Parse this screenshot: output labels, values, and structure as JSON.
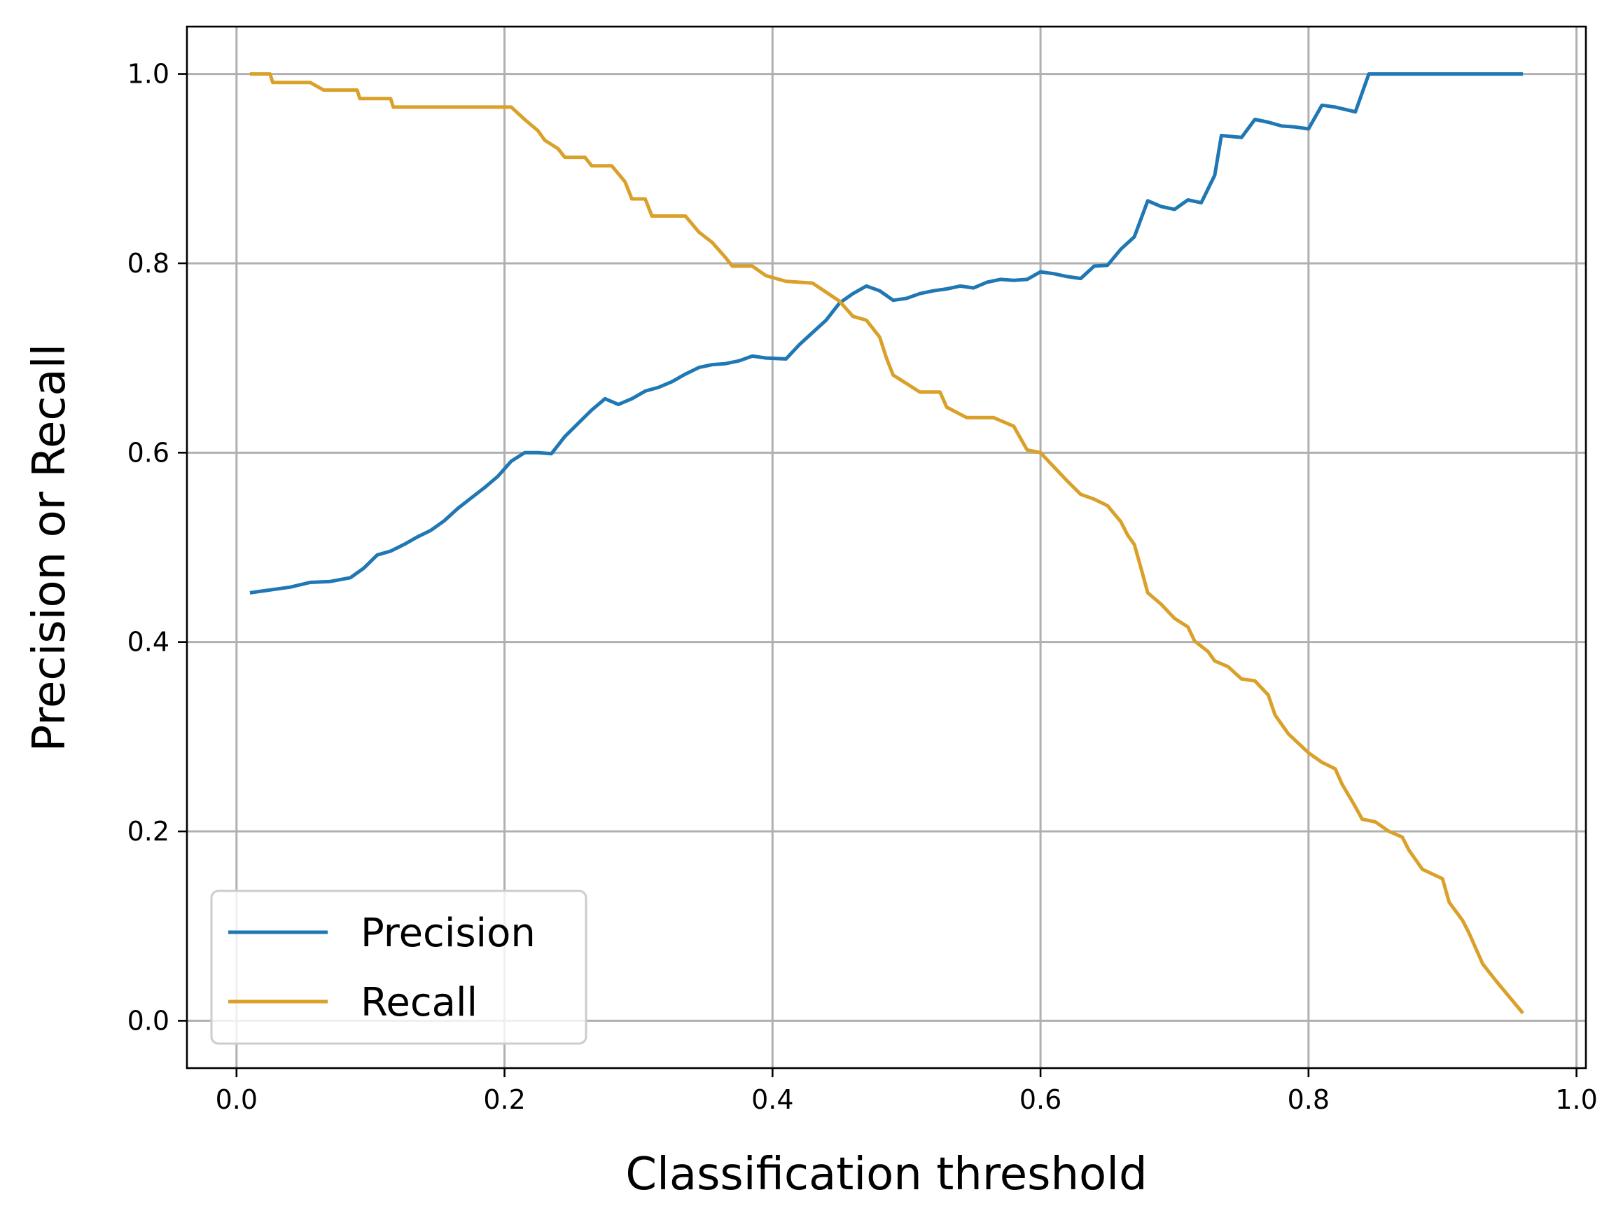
{
  "chart_data": {
    "type": "line",
    "title": "",
    "xlabel": "Classification threshold",
    "ylabel": "Precision or Recall",
    "xlim": [
      -0.037,
      1.007
    ],
    "ylim": [
      -0.05,
      1.05
    ],
    "xticks": [
      0.0,
      0.2,
      0.4,
      0.6,
      0.8,
      1.0
    ],
    "xtick_labels": [
      "0.0",
      "0.2",
      "0.4",
      "0.6",
      "0.8",
      "1.0"
    ],
    "yticks": [
      0.0,
      0.2,
      0.4,
      0.6,
      0.8,
      1.0
    ],
    "ytick_labels": [
      "0.0",
      "0.2",
      "0.4",
      "0.6",
      "0.8",
      "1.0"
    ],
    "grid": true,
    "legend_position": "lower-left",
    "series": [
      {
        "name": "Precision",
        "color": "#1f77b4",
        "points": [
          [
            0.01,
            0.452
          ],
          [
            0.025,
            0.455
          ],
          [
            0.04,
            0.458
          ],
          [
            0.055,
            0.463
          ],
          [
            0.07,
            0.464
          ],
          [
            0.085,
            0.468
          ],
          [
            0.095,
            0.478
          ],
          [
            0.105,
            0.492
          ],
          [
            0.115,
            0.496
          ],
          [
            0.125,
            0.503
          ],
          [
            0.135,
            0.511
          ],
          [
            0.145,
            0.518
          ],
          [
            0.155,
            0.528
          ],
          [
            0.165,
            0.541
          ],
          [
            0.175,
            0.552
          ],
          [
            0.185,
            0.563
          ],
          [
            0.195,
            0.575
          ],
          [
            0.205,
            0.591
          ],
          [
            0.215,
            0.6
          ],
          [
            0.225,
            0.6
          ],
          [
            0.235,
            0.599
          ],
          [
            0.245,
            0.617
          ],
          [
            0.255,
            0.631
          ],
          [
            0.265,
            0.645
          ],
          [
            0.275,
            0.657
          ],
          [
            0.285,
            0.651
          ],
          [
            0.295,
            0.657
          ],
          [
            0.305,
            0.665
          ],
          [
            0.315,
            0.669
          ],
          [
            0.325,
            0.675
          ],
          [
            0.335,
            0.683
          ],
          [
            0.345,
            0.69
          ],
          [
            0.355,
            0.693
          ],
          [
            0.365,
            0.694
          ],
          [
            0.375,
            0.697
          ],
          [
            0.385,
            0.702
          ],
          [
            0.395,
            0.7
          ],
          [
            0.41,
            0.699
          ],
          [
            0.42,
            0.714
          ],
          [
            0.43,
            0.727
          ],
          [
            0.44,
            0.74
          ],
          [
            0.45,
            0.758
          ],
          [
            0.46,
            0.768
          ],
          [
            0.47,
            0.776
          ],
          [
            0.48,
            0.771
          ],
          [
            0.49,
            0.761
          ],
          [
            0.5,
            0.763
          ],
          [
            0.51,
            0.768
          ],
          [
            0.52,
            0.771
          ],
          [
            0.53,
            0.773
          ],
          [
            0.54,
            0.776
          ],
          [
            0.55,
            0.774
          ],
          [
            0.56,
            0.78
          ],
          [
            0.57,
            0.783
          ],
          [
            0.58,
            0.782
          ],
          [
            0.59,
            0.783
          ],
          [
            0.6,
            0.791
          ],
          [
            0.61,
            0.789
          ],
          [
            0.62,
            0.786
          ],
          [
            0.63,
            0.784
          ],
          [
            0.64,
            0.797
          ],
          [
            0.65,
            0.798
          ],
          [
            0.66,
            0.815
          ],
          [
            0.67,
            0.828
          ],
          [
            0.68,
            0.866
          ],
          [
            0.69,
            0.86
          ],
          [
            0.7,
            0.857
          ],
          [
            0.71,
            0.867
          ],
          [
            0.72,
            0.864
          ],
          [
            0.73,
            0.893
          ],
          [
            0.735,
            0.935
          ],
          [
            0.75,
            0.933
          ],
          [
            0.76,
            0.952
          ],
          [
            0.77,
            0.949
          ],
          [
            0.78,
            0.945
          ],
          [
            0.79,
            0.944
          ],
          [
            0.8,
            0.942
          ],
          [
            0.81,
            0.967
          ],
          [
            0.82,
            0.965
          ],
          [
            0.835,
            0.96
          ],
          [
            0.845,
            1.0
          ],
          [
            0.96,
            1.0
          ]
        ]
      },
      {
        "name": "Recall",
        "color": "#daa12a",
        "points": [
          [
            0.01,
            1.0
          ],
          [
            0.025,
            1.0
          ],
          [
            0.027,
            0.991
          ],
          [
            0.055,
            0.991
          ],
          [
            0.065,
            0.983
          ],
          [
            0.09,
            0.983
          ],
          [
            0.092,
            0.974
          ],
          [
            0.115,
            0.974
          ],
          [
            0.117,
            0.965
          ],
          [
            0.205,
            0.965
          ],
          [
            0.215,
            0.952
          ],
          [
            0.225,
            0.94
          ],
          [
            0.23,
            0.93
          ],
          [
            0.24,
            0.921
          ],
          [
            0.245,
            0.912
          ],
          [
            0.26,
            0.912
          ],
          [
            0.265,
            0.903
          ],
          [
            0.28,
            0.903
          ],
          [
            0.29,
            0.886
          ],
          [
            0.295,
            0.868
          ],
          [
            0.305,
            0.868
          ],
          [
            0.31,
            0.85
          ],
          [
            0.335,
            0.85
          ],
          [
            0.345,
            0.833
          ],
          [
            0.355,
            0.822
          ],
          [
            0.365,
            0.806
          ],
          [
            0.37,
            0.797
          ],
          [
            0.385,
            0.797
          ],
          [
            0.395,
            0.787
          ],
          [
            0.41,
            0.781
          ],
          [
            0.43,
            0.779
          ],
          [
            0.45,
            0.76
          ],
          [
            0.46,
            0.744
          ],
          [
            0.47,
            0.74
          ],
          [
            0.475,
            0.731
          ],
          [
            0.48,
            0.722
          ],
          [
            0.485,
            0.7
          ],
          [
            0.49,
            0.682
          ],
          [
            0.5,
            0.673
          ],
          [
            0.51,
            0.664
          ],
          [
            0.525,
            0.664
          ],
          [
            0.53,
            0.648
          ],
          [
            0.545,
            0.637
          ],
          [
            0.565,
            0.637
          ],
          [
            0.58,
            0.628
          ],
          [
            0.59,
            0.603
          ],
          [
            0.6,
            0.6
          ],
          [
            0.61,
            0.585
          ],
          [
            0.62,
            0.57
          ],
          [
            0.63,
            0.556
          ],
          [
            0.64,
            0.551
          ],
          [
            0.65,
            0.544
          ],
          [
            0.66,
            0.527
          ],
          [
            0.665,
            0.513
          ],
          [
            0.67,
            0.503
          ],
          [
            0.675,
            0.478
          ],
          [
            0.68,
            0.452
          ],
          [
            0.69,
            0.44
          ],
          [
            0.7,
            0.425
          ],
          [
            0.71,
            0.416
          ],
          [
            0.715,
            0.401
          ],
          [
            0.725,
            0.39
          ],
          [
            0.73,
            0.38
          ],
          [
            0.74,
            0.374
          ],
          [
            0.75,
            0.361
          ],
          [
            0.76,
            0.359
          ],
          [
            0.77,
            0.344
          ],
          [
            0.775,
            0.323
          ],
          [
            0.785,
            0.303
          ],
          [
            0.8,
            0.283
          ],
          [
            0.81,
            0.273
          ],
          [
            0.82,
            0.266
          ],
          [
            0.825,
            0.25
          ],
          [
            0.835,
            0.226
          ],
          [
            0.84,
            0.213
          ],
          [
            0.85,
            0.21
          ],
          [
            0.86,
            0.2
          ],
          [
            0.87,
            0.194
          ],
          [
            0.875,
            0.18
          ],
          [
            0.885,
            0.16
          ],
          [
            0.9,
            0.15
          ],
          [
            0.905,
            0.125
          ],
          [
            0.915,
            0.106
          ],
          [
            0.92,
            0.092
          ],
          [
            0.93,
            0.06
          ],
          [
            0.94,
            0.042
          ],
          [
            0.95,
            0.025
          ],
          [
            0.96,
            0.008
          ]
        ]
      }
    ]
  }
}
